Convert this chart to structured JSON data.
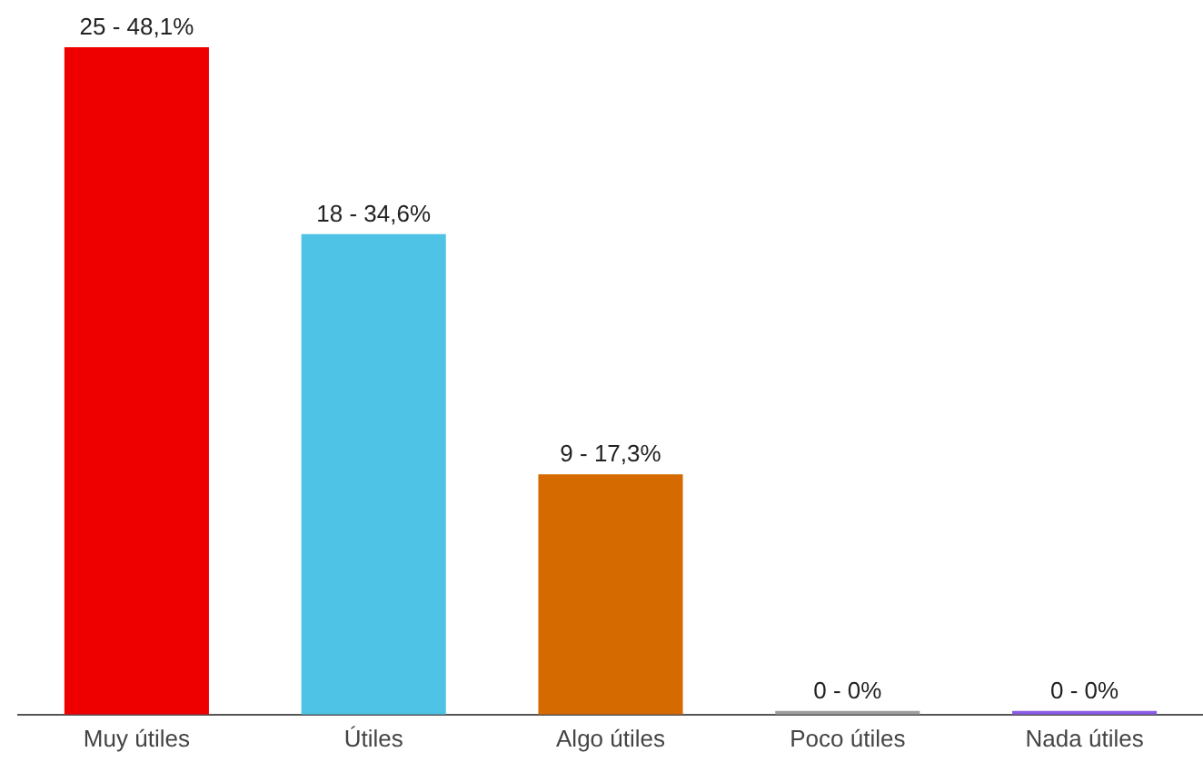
{
  "chart_data": {
    "type": "bar",
    "categories": [
      "Muy útiles",
      "Útiles",
      "Algo útiles",
      "Poco útiles",
      "Nada útiles"
    ],
    "values": [
      25,
      18,
      9,
      0,
      0
    ],
    "colors": [
      "#ee0000",
      "#4fc3e6",
      "#d46a00",
      "#9e9e9e",
      "#8a5ce6"
    ],
    "value_labels": [
      "25 - 48,1%",
      "18 - 34,6%",
      "9 - 17,3%",
      "0 - 0%",
      "0 - 0%"
    ],
    "grid": false,
    "legend": false
  }
}
